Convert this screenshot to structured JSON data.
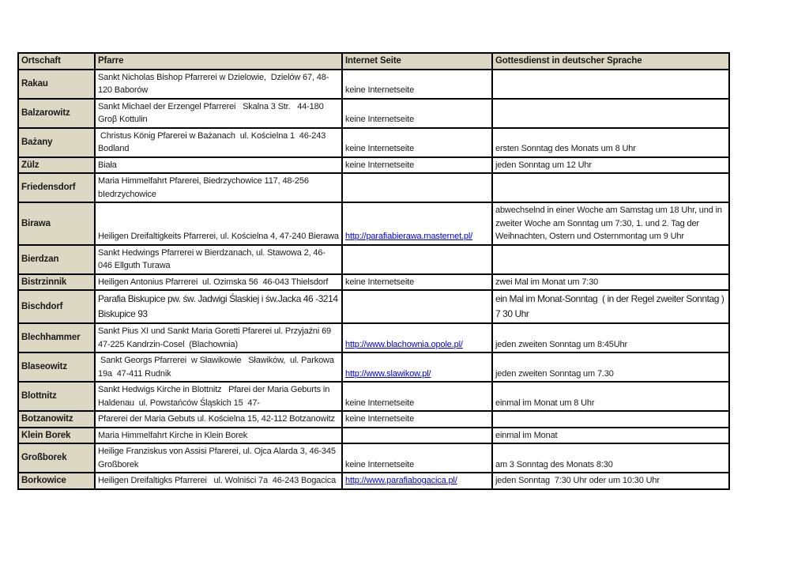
{
  "table": {
    "header_bg": "#ddd8c3",
    "link_color": "#0000ee",
    "columns": [
      "Ortschaft",
      "Pfarre",
      "Internet Seite",
      "Gottesdienst in deutscher Sprache"
    ],
    "rows": [
      {
        "ortschaft": "Rakau",
        "pfarre": "Sankt Nicholas Bishop Pfarrerei w Dzielowie,  Dzielów 67, 48-120 Baborów",
        "internet": "keine Internetseite",
        "internet_is_link": false,
        "gottesdienst": ""
      },
      {
        "ortschaft": "Balzarowitz",
        "pfarre": "Sankt Michael der Erzengel Pfarrerei   Skalna 3 Str.   44-180 Groβ Kottulin",
        "internet": "keine Internetseite",
        "internet_is_link": false,
        "gottesdienst": ""
      },
      {
        "ortschaft": "Bażany",
        "pfarre": " Christus König Pfarerei w Bażanach  ul. Kościelna 1  46-243 Bodland",
        "internet": "keine Internetseite",
        "internet_is_link": false,
        "gottesdienst": "ersten Sonntag des Monats um 8 Uhr"
      },
      {
        "ortschaft": "Zülz",
        "pfarre": "Biała",
        "internet": "keine Internetseite",
        "internet_is_link": false,
        "gottesdienst": "jeden Sonntag um 12 Uhr"
      },
      {
        "ortschaft": "Friedensdorf",
        "pfarre": "Maria Himmelfahrt Pfarerei, Biedrzychowice 117, 48-256 bIedrzychowice",
        "internet": "",
        "internet_is_link": false,
        "gottesdienst": ""
      },
      {
        "ortschaft": "Birawa",
        "pfarre": "Heiligen Dreifaltigkeits Pfarrerei, ul. Kościelna 4, 47-240 Bierawa",
        "internet": "http://parafiabierawa.masternet.pl/",
        "internet_is_link": true,
        "gottesdienst": "abwechselnd in einer Woche am Samstag um 18 Uhr, und in zweiter Woche am Sonntag um 7:30, 1. und 2. Tag der Weihnachten, Ostern und Osternmontag um 9 Uhr"
      },
      {
        "ortschaft": "Bierdzan",
        "pfarre": "Sankt Hedwings Pfarrerei w Bierdzanach, ul. Stawowa 2, 46-046 Ellguth Turawa",
        "internet": "",
        "internet_is_link": false,
        "gottesdienst": ""
      },
      {
        "ortschaft": "Bistrzinnik",
        "pfarre": "Heiligen Antonius Pfarrerei  ul. Ozimska 56  46-043 Thielsdorf",
        "internet": "keine Internetseite",
        "internet_is_link": false,
        "gottesdienst": "zwei Mal im Monat um 7:30"
      },
      {
        "ortschaft": "Bischdorf",
        "pfarre": "Parafia Biskupice pw. św. Jadwigi Ślaskiej i św.Jacka 46 -3214 Biskupice 93",
        "internet": "",
        "internet_is_link": false,
        "gottesdienst": "ein Mal im Monat-Sonntag  ( in der Regel zweiter Sonntag )  7 30 Uhr",
        "large": true
      },
      {
        "ortschaft": "Blechhammer",
        "pfarre": "Sankt Pius XI und Sankt Maria Goretti Pfarerei ul. Przyjaźni 69   47-225 Kandrzin-Cosel  (Blachownia)",
        "internet": "http://www.blachownia.opole.pl/",
        "internet_is_link": true,
        "gottesdienst": "jeden zweiten Sonntag um 8:45Uhr"
      },
      {
        "ortschaft": "Blaseowitz",
        "pfarre": " Sankt Georgs Pfarrerei  w Sławikowie   Sławików,  ul. Parkowa 19a  47-411 Rudnik",
        "internet": "http://www.slawikow.pl/",
        "internet_is_link": true,
        "gottesdienst": "jeden zweiten Sonntag um 7.30"
      },
      {
        "ortschaft": "Blottnitz",
        "pfarre": "Sankt Hedwigs Kirche in Blottnitz   Pfarei der Maria Geburts in Haldenau  ul. Powstańców Śląskich 15  47-",
        "internet": "keine Internetseite",
        "internet_is_link": false,
        "gottesdienst": "einmal im Monat um 8 Uhr"
      },
      {
        "ortschaft": "Botzanowitz",
        "pfarre": "Pfarerei der Maria Gebuts ul. Kościelna 15, 42-112 Botzanowitz",
        "internet": "keine Internetseite",
        "internet_is_link": false,
        "gottesdienst": ""
      },
      {
        "ortschaft": "Klein Borek",
        "pfarre": "Maria Himmelfahrt Kirche in Klein Borek",
        "internet": "",
        "internet_is_link": false,
        "gottesdienst": "einmal im Monat"
      },
      {
        "ortschaft": "Großborek",
        "pfarre": "Heilige Franziskus von Assisi Pfarerei, ul. Ojca Alarda 3, 46-345 Großborek",
        "internet": "keine Internetseite",
        "internet_is_link": false,
        "gottesdienst": "am 3 Sonntag des Monats 8:30"
      },
      {
        "ortschaft": "Borkowice",
        "pfarre": "Heiligen Dreifaltigks Pfarrerei   ul. Wolniści 7a  46-243 Bogacica",
        "internet": "http://www.parafiabogacica.pl/",
        "internet_is_link": true,
        "gottesdienst": "jeden Sonntag  7:30 Uhr oder um 10:30 Uhr"
      }
    ]
  }
}
